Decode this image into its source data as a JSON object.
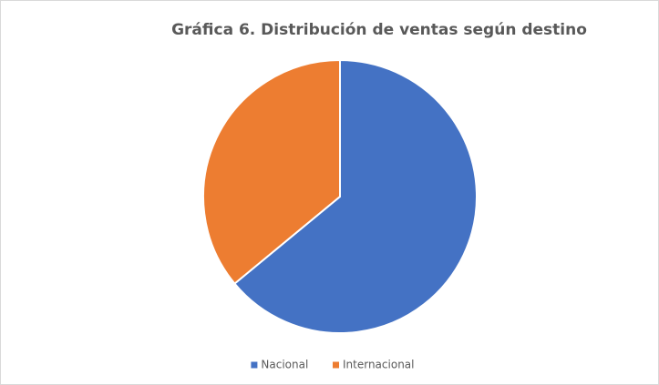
{
  "chart_data": {
    "type": "pie",
    "title": "Gráfica 6. Distribución de ventas según destino",
    "categories": [
      "Nacional",
      "Internacional"
    ],
    "values": [
      64,
      36
    ],
    "colors": [
      "#4472c4",
      "#ed7d31"
    ],
    "legend": "bottom"
  }
}
